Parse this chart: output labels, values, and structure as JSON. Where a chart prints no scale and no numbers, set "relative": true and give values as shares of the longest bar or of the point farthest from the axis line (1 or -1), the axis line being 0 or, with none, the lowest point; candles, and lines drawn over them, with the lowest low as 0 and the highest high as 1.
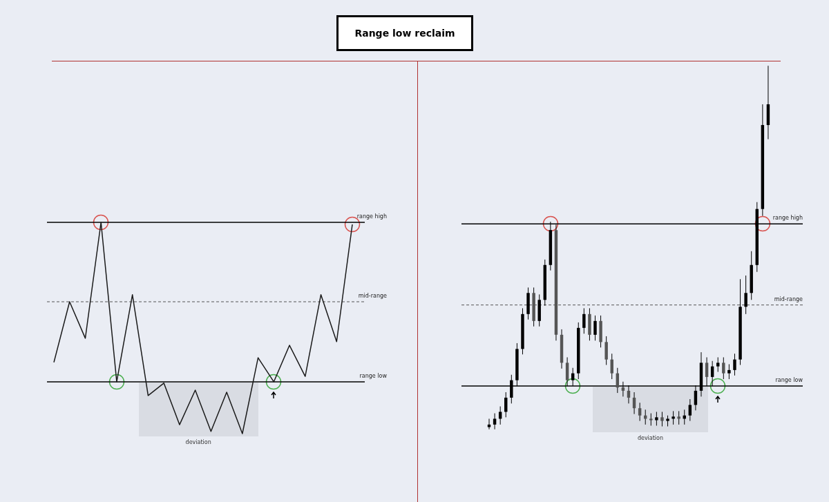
{
  "chart_data": [
    {
      "type": "line",
      "title": "Range low reclaim",
      "categories": [
        null,
        null,
        null,
        null,
        null,
        null,
        null,
        null,
        null,
        null,
        null,
        null,
        null,
        null,
        null,
        null,
        null,
        null,
        null,
        null
      ],
      "relative": true,
      "color": "#1a1a1a",
      "values": [
        0.122,
        0.502,
        0.273,
        1,
        0,
        0.546,
        -0.086,
        -0.008,
        -0.269,
        -0.052,
        -0.311,
        -0.065,
        -0.325,
        0.151,
        0,
        0.229,
        0.034,
        0.546,
        0.252,
        0.987
      ],
      "ref_lines": [
        {
          "axis": "y",
          "value": 1,
          "label": "range high",
          "color": "#000000",
          "line_style": "solid"
        },
        {
          "axis": "y",
          "value": 0.502,
          "label": "mid-range",
          "color": "#555555",
          "line_style": "dashed"
        },
        {
          "axis": "y",
          "value": 0,
          "label": "range low",
          "color": "#000000",
          "line_style": "solid"
        }
      ],
      "annotations": [
        "deviation"
      ]
    },
    {
      "type": "candlestick",
      "categories": [
        null,
        null,
        null,
        null,
        null,
        null,
        null,
        null,
        null,
        null,
        null,
        null,
        null,
        null,
        null,
        null,
        null,
        null,
        null,
        null,
        null,
        null,
        null,
        null,
        null,
        null,
        null,
        null,
        null,
        null,
        null,
        null,
        null,
        null,
        null,
        null,
        null,
        null,
        null,
        null,
        null,
        null,
        null,
        null,
        null,
        null,
        null,
        null,
        null,
        null,
        null
      ],
      "relative": true,
      "color": "#000000",
      "colors": [
        "#000000",
        "#000000",
        "#000000",
        "#000000",
        "#000000",
        "#000000",
        "#000000",
        "#000000",
        "#555555",
        "#000000",
        "#000000",
        "#000000",
        "#555555",
        "#555555",
        "#555555",
        "#000000",
        "#000000",
        "#000000",
        "#555555",
        "#000000",
        "#555555",
        "#555555",
        "#555555",
        "#555555",
        "#555555",
        "#555555",
        "#555555",
        "#555555",
        "#555555",
        "#555555",
        "#000000",
        "#555555",
        "#000000",
        "#000000",
        "#555555",
        "#000000",
        "#000000",
        "#000000",
        "#000000",
        "#555555",
        "#000000",
        "#000000",
        "#555555",
        "#000000",
        "#000000",
        "#000000",
        "#000000",
        "#000000",
        "#000000",
        "#000000",
        "#000000"
      ],
      "ohlc": [
        [
          0.006,
          0.029,
          0,
          0.013
        ],
        [
          0.013,
          0.044,
          0,
          0.029
        ],
        [
          0.029,
          0.063,
          0.013,
          0.048
        ],
        [
          0.048,
          0.102,
          0.033,
          0.087
        ],
        [
          0.087,
          0.15,
          0.071,
          0.135
        ],
        [
          0.135,
          0.237,
          0.119,
          0.221
        ],
        [
          0.221,
          0.333,
          0.206,
          0.317
        ],
        [
          0.317,
          0.39,
          0.302,
          0.375
        ],
        [
          0.375,
          0.39,
          0.283,
          0.298
        ],
        [
          0.298,
          0.371,
          0.283,
          0.356
        ],
        [
          0.356,
          0.467,
          0.34,
          0.452
        ],
        [
          0.452,
          0.571,
          0.437,
          0.548
        ],
        [
          0.548,
          0.563,
          0.244,
          0.26
        ],
        [
          0.26,
          0.275,
          0.167,
          0.183
        ],
        [
          0.183,
          0.198,
          0.119,
          0.135
        ],
        [
          0.135,
          0.169,
          0.119,
          0.154
        ],
        [
          0.154,
          0.294,
          0.138,
          0.279
        ],
        [
          0.279,
          0.333,
          0.263,
          0.317
        ],
        [
          0.317,
          0.333,
          0.244,
          0.26
        ],
        [
          0.26,
          0.313,
          0.244,
          0.298
        ],
        [
          0.298,
          0.313,
          0.225,
          0.24
        ],
        [
          0.24,
          0.256,
          0.177,
          0.192
        ],
        [
          0.192,
          0.208,
          0.138,
          0.154
        ],
        [
          0.154,
          0.169,
          0.1,
          0.115
        ],
        [
          0.115,
          0.131,
          0.09,
          0.106
        ],
        [
          0.106,
          0.121,
          0.071,
          0.087
        ],
        [
          0.087,
          0.102,
          0.042,
          0.058
        ],
        [
          0.058,
          0.073,
          0.023,
          0.038
        ],
        [
          0.038,
          0.054,
          0.013,
          0.029
        ],
        [
          0.029,
          0.044,
          0.01,
          0.025
        ],
        [
          0.025,
          0.048,
          0.01,
          0.033
        ],
        [
          0.033,
          0.048,
          0.008,
          0.023
        ],
        [
          0.023,
          0.038,
          0.008,
          0.029
        ],
        [
          0.029,
          0.05,
          0.013,
          0.035
        ],
        [
          0.035,
          0.05,
          0.013,
          0.029
        ],
        [
          0.029,
          0.054,
          0.013,
          0.038
        ],
        [
          0.038,
          0.083,
          0.023,
          0.067
        ],
        [
          0.067,
          0.121,
          0.052,
          0.106
        ],
        [
          0.106,
          0.212,
          0.09,
          0.183
        ],
        [
          0.183,
          0.198,
          0.119,
          0.144
        ],
        [
          0.144,
          0.188,
          0.119,
          0.173
        ],
        [
          0.173,
          0.198,
          0.158,
          0.183
        ],
        [
          0.183,
          0.198,
          0.138,
          0.154
        ],
        [
          0.154,
          0.179,
          0.138,
          0.163
        ],
        [
          0.163,
          0.208,
          0.148,
          0.192
        ],
        [
          0.192,
          0.413,
          0.177,
          0.337
        ],
        [
          0.337,
          0.423,
          0.317,
          0.375
        ],
        [
          0.375,
          0.49,
          0.356,
          0.452
        ],
        [
          0.452,
          0.625,
          0.433,
          0.606
        ],
        [
          0.606,
          0.894,
          0.587,
          0.837
        ],
        [
          0.837,
          1,
          0.798,
          0.894
        ]
      ],
      "ref_lines": [
        {
          "axis": "y",
          "value": 0.565,
          "label": "range high",
          "color": "#000000",
          "line_style": "solid"
        },
        {
          "axis": "y",
          "value": 0.342,
          "label": "mid-range",
          "color": "#555555",
          "line_style": "dashed"
        },
        {
          "axis": "y",
          "value": 0.119,
          "label": "range low",
          "color": "#000000",
          "line_style": "solid"
        }
      ],
      "annotations": [
        "deviation"
      ]
    }
  ]
}
